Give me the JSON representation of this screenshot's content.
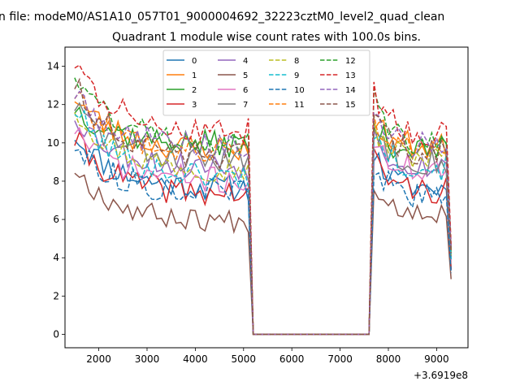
{
  "chart_data": {
    "type": "line",
    "suptitle": "n file: modeM0/AS1A10_057T01_9000004692_32223cztM0_level2_quad_clean",
    "title": "Quadrant 1 module wise count rates with 100.0s bins.",
    "xlabel": "",
    "ylabel": "",
    "x_offset_label": "+3.6919e8",
    "xlim": [
      1300,
      9650
    ],
    "ylim": [
      -0.7,
      15.0
    ],
    "xticks": [
      2000,
      3000,
      4000,
      5000,
      6000,
      7000,
      8000,
      9000
    ],
    "xtick_labels": [
      "2000",
      "3000",
      "4000",
      "5000",
      "6000",
      "7000",
      "8000",
      "9000"
    ],
    "yticks": [
      0,
      2,
      4,
      6,
      8,
      10,
      12,
      14
    ],
    "ytick_labels": [
      "0",
      "2",
      "4",
      "6",
      "8",
      "10",
      "12",
      "14"
    ],
    "legend": {
      "location": "upper center",
      "ncol": 4
    },
    "segments": {
      "active1": {
        "start": 1500,
        "end": 5100
      },
      "drop1_end": 5200,
      "gap_end": 7600,
      "rise_end": 7700,
      "active2": {
        "start": 7700,
        "end": 9300
      }
    },
    "series": [
      {
        "name": "0",
        "color": "#1f77b4",
        "dash": "solid",
        "start": 10.5,
        "level1": 7.6,
        "level2": 7.6,
        "noise": 0.35,
        "seed": 11
      },
      {
        "name": "1",
        "color": "#ff7f0e",
        "dash": "solid",
        "start": 12.5,
        "level1": 9.6,
        "level2": 9.8,
        "noise": 0.35,
        "seed": 23
      },
      {
        "name": "2",
        "color": "#2ca02c",
        "dash": "solid",
        "start": 11.9,
        "level1": 9.9,
        "level2": 9.6,
        "noise": 0.35,
        "seed": 37
      },
      {
        "name": "3",
        "color": "#d62728",
        "dash": "solid",
        "start": 10.2,
        "level1": 7.3,
        "level2": 7.5,
        "noise": 0.35,
        "seed": 41
      },
      {
        "name": "4",
        "color": "#9467bd",
        "dash": "solid",
        "start": 11.5,
        "level1": 8.7,
        "level2": 8.8,
        "noise": 0.35,
        "seed": 53
      },
      {
        "name": "5",
        "color": "#8c564b",
        "dash": "solid",
        "start": 8.7,
        "level1": 5.9,
        "level2": 6.4,
        "noise": 0.3,
        "seed": 67
      },
      {
        "name": "6",
        "color": "#e377c2",
        "dash": "solid",
        "start": 10.8,
        "level1": 8.0,
        "level2": 8.6,
        "noise": 0.35,
        "seed": 71
      },
      {
        "name": "7",
        "color": "#7f7f7f",
        "dash": "solid",
        "start": 12.0,
        "level1": 9.0,
        "level2": 9.0,
        "noise": 0.35,
        "seed": 83
      },
      {
        "name": "8",
        "color": "#bcbd22",
        "dash": "dashed",
        "start": 11.9,
        "level1": 8.6,
        "level2": 9.2,
        "noise": 0.35,
        "seed": 97
      },
      {
        "name": "9",
        "color": "#17becf",
        "dash": "dashed",
        "start": 11.8,
        "level1": 8.2,
        "level2": 8.7,
        "noise": 0.35,
        "seed": 101
      },
      {
        "name": "10",
        "color": "#1f77b4",
        "dash": "dashed",
        "start": 9.9,
        "level1": 7.4,
        "level2": 7.1,
        "noise": 0.35,
        "seed": 113
      },
      {
        "name": "11",
        "color": "#ff7f0e",
        "dash": "dashed",
        "start": 12.6,
        "level1": 9.6,
        "level2": 9.7,
        "noise": 0.35,
        "seed": 127
      },
      {
        "name": "12",
        "color": "#2ca02c",
        "dash": "dashed",
        "start": 13.7,
        "level1": 10.0,
        "level2": 9.9,
        "noise": 0.35,
        "seed": 131
      },
      {
        "name": "13",
        "color": "#d62728",
        "dash": "dashed",
        "start": 14.2,
        "level1": 10.6,
        "level2": 10.4,
        "noise": 0.35,
        "seed": 137
      },
      {
        "name": "14",
        "color": "#9467bd",
        "dash": "dashed",
        "start": 12.6,
        "level1": 9.8,
        "level2": 9.8,
        "noise": 0.35,
        "seed": 149
      },
      {
        "name": "15",
        "color": "#8c564b",
        "dash": "dashed",
        "start": 13.1,
        "level1": 9.2,
        "level2": 9.4,
        "noise": 0.35,
        "seed": 151
      }
    ]
  }
}
